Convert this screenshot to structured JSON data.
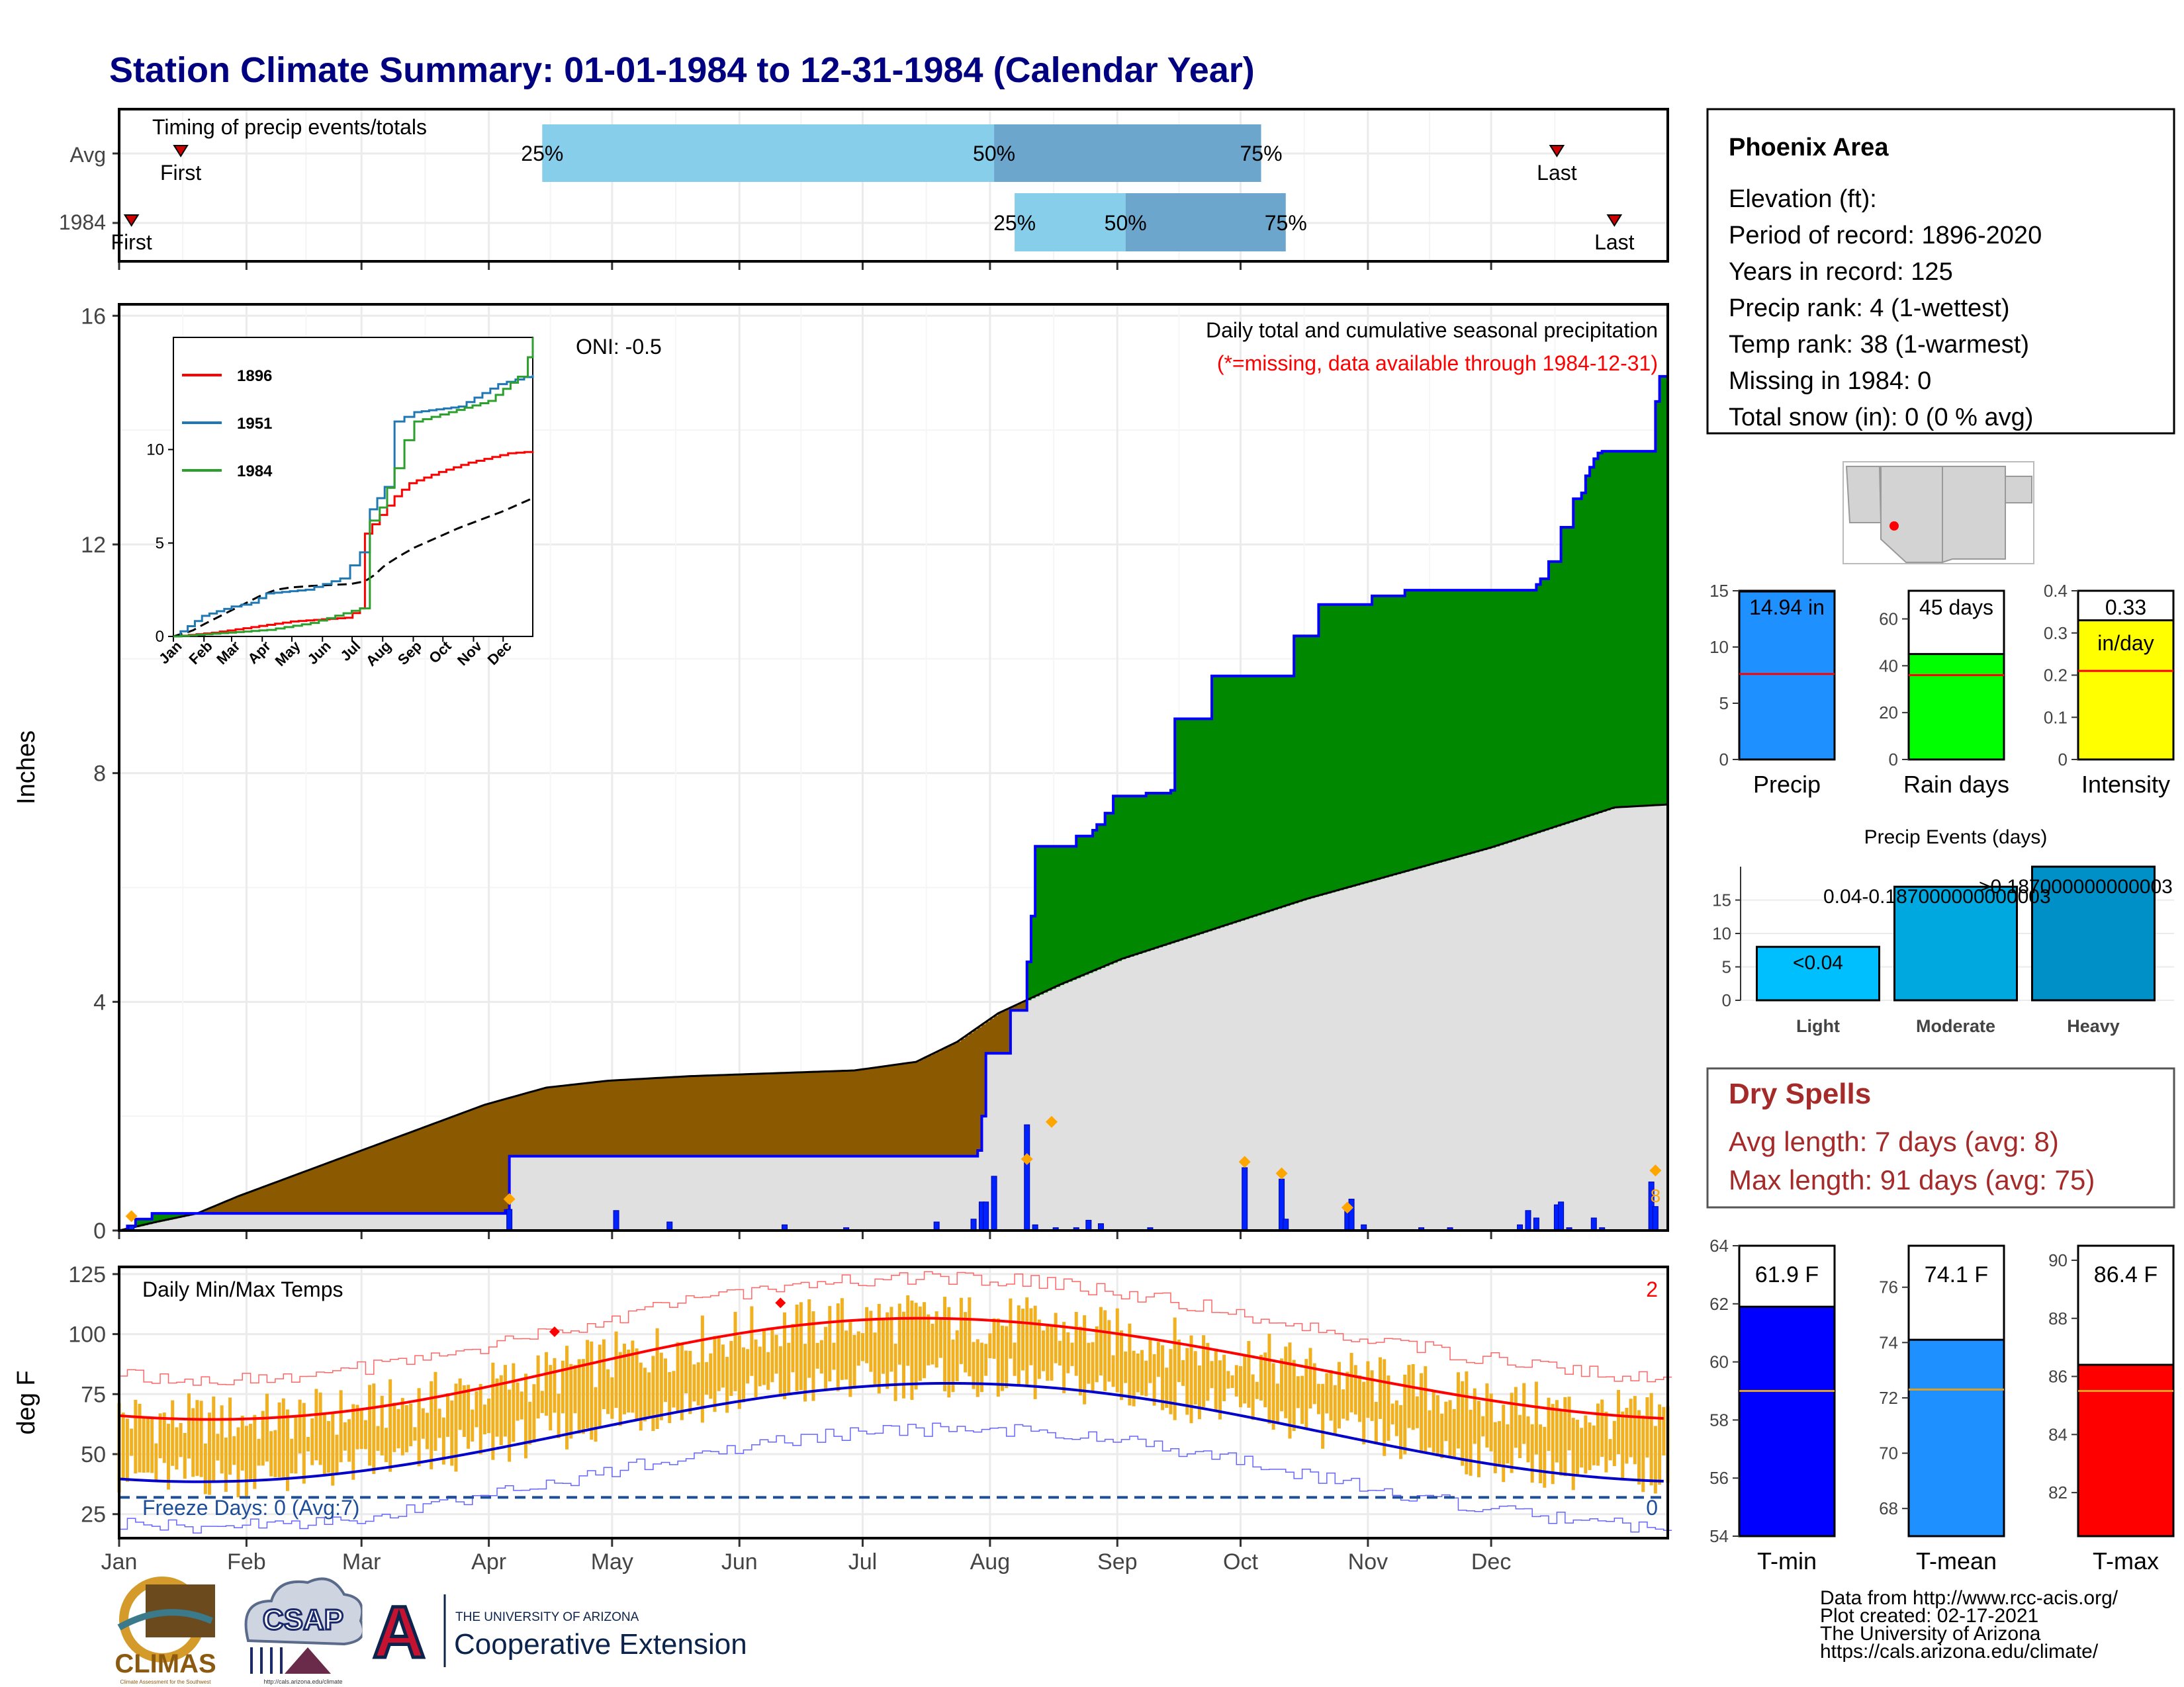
{
  "title": "Station Climate Summary: 01-01-1984 to 12-31-1984 (Calendar Year)",
  "colors": {
    "title": "#000080",
    "dry": "#8b5a00",
    "wet": "#008800",
    "avg_fill": "#e0e0e0",
    "cum_line": "#0000ff",
    "light_blue": "#87ceeb",
    "mid_blue": "#6ca6cd",
    "temp_bar": "#f0b020",
    "tmax_line": "#ff0000",
    "tmin_line": "#0000cc",
    "dry_spell": "#a52a2a",
    "marker": "#ffa500"
  },
  "timing": {
    "label": "Timing of precip events/totals",
    "rows": [
      {
        "row": "Avg",
        "first_doy": 16,
        "p25_doy": 104,
        "p50_doy": 214,
        "p75_doy": 279,
        "last_doy": 351
      },
      {
        "row": "1984",
        "first_doy": 4,
        "p25_doy": 219,
        "p50_doy": 246,
        "p75_doy": 285,
        "last_doy": 365
      }
    ],
    "first_label": "First",
    "last_label": "Last",
    "p25_label": "25%",
    "p50_label": "50%",
    "p75_label": "75%"
  },
  "months": [
    "Jan",
    "Feb",
    "Mar",
    "Apr",
    "May",
    "Jun",
    "Jul",
    "Aug",
    "Sep",
    "Oct",
    "Nov",
    "Dec"
  ],
  "precip": {
    "annotation_main": "Daily total and cumulative seasonal precipitation",
    "annotation_missing": "(*=missing, data available through 1984-12-31)",
    "oni": "ONI: -0.5",
    "ylabel": "Inches",
    "yticks": [
      0,
      4,
      8,
      12,
      16
    ],
    "ylim": [
      0,
      16.2
    ],
    "cumulative_1984": [
      [
        1,
        0
      ],
      [
        3,
        0.08
      ],
      [
        5,
        0.2
      ],
      [
        9,
        0.3
      ],
      [
        95,
        0.35
      ],
      [
        96,
        0.72
      ],
      [
        96,
        1.3
      ],
      [
        210,
        1.32
      ],
      [
        210,
        1.4
      ],
      [
        211,
        1.55
      ],
      [
        211,
        2.0
      ],
      [
        212,
        2.9
      ],
      [
        212,
        3.1
      ],
      [
        218,
        3.45
      ],
      [
        218,
        3.85
      ],
      [
        222,
        3.85
      ],
      [
        222,
        4.7
      ],
      [
        223,
        4.9
      ],
      [
        223,
        5.5
      ],
      [
        224,
        6.72
      ],
      [
        233,
        6.72
      ],
      [
        234,
        6.9
      ],
      [
        238,
        7.0
      ],
      [
        239,
        7.1
      ],
      [
        241,
        7.3
      ],
      [
        243,
        7.6
      ],
      [
        251,
        7.65
      ],
      [
        257,
        7.7
      ],
      [
        258,
        8.95
      ],
      [
        267,
        8.95
      ],
      [
        267,
        9.7
      ],
      [
        287,
        9.7
      ],
      [
        287,
        10.4
      ],
      [
        293,
        10.4
      ],
      [
        293,
        10.95
      ],
      [
        306,
        10.95
      ],
      [
        306,
        11.1
      ],
      [
        314,
        11.1
      ],
      [
        314,
        11.2
      ],
      [
        325,
        11.2
      ],
      [
        334,
        11.2
      ],
      [
        346,
        11.2
      ],
      [
        346,
        11.3
      ],
      [
        347,
        11.4
      ],
      [
        349,
        11.7
      ],
      [
        352,
        11.7
      ],
      [
        352,
        12.3
      ],
      [
        355,
        12.3
      ],
      [
        355,
        12.8
      ],
      [
        357,
        12.9
      ],
      [
        358,
        13.1
      ],
      [
        358,
        13.2
      ],
      [
        359,
        13.35
      ],
      [
        360,
        13.4
      ],
      [
        360,
        13.5
      ],
      [
        361,
        13.6
      ],
      [
        362,
        13.63
      ],
      [
        374,
        13.63
      ],
      [
        375,
        14.5
      ],
      [
        376,
        14.94
      ],
      [
        378,
        14.94
      ]
    ],
    "average_cumulative": [
      [
        1,
        0
      ],
      [
        10,
        0.15
      ],
      [
        20,
        0.3
      ],
      [
        30,
        0.6
      ],
      [
        45,
        1.0
      ],
      [
        60,
        1.4
      ],
      [
        75,
        1.8
      ],
      [
        90,
        2.2
      ],
      [
        105,
        2.5
      ],
      [
        120,
        2.62
      ],
      [
        140,
        2.7
      ],
      [
        160,
        2.75
      ],
      [
        180,
        2.8
      ],
      [
        195,
        2.95
      ],
      [
        205,
        3.3
      ],
      [
        215,
        3.8
      ],
      [
        230,
        4.3
      ],
      [
        245,
        4.75
      ],
      [
        260,
        5.1
      ],
      [
        275,
        5.45
      ],
      [
        290,
        5.8
      ],
      [
        305,
        6.1
      ],
      [
        320,
        6.4
      ],
      [
        335,
        6.7
      ],
      [
        350,
        7.05
      ],
      [
        365,
        7.4
      ]
    ],
    "daily_bars": [
      [
        4,
        0.08
      ],
      [
        96,
        0.37
      ],
      [
        122,
        0.35
      ],
      [
        135,
        0.15
      ],
      [
        163,
        0.1
      ],
      [
        178,
        0.05
      ],
      [
        200,
        0.15
      ],
      [
        209,
        0.2
      ],
      [
        211,
        0.5
      ],
      [
        212,
        0.5
      ],
      [
        214,
        0.95
      ],
      [
        222,
        1.85
      ],
      [
        224,
        0.1
      ],
      [
        229,
        0.05
      ],
      [
        234,
        0.05
      ],
      [
        237,
        0.18
      ],
      [
        240,
        0.12
      ],
      [
        252,
        0.05
      ],
      [
        275,
        1.1
      ],
      [
        284,
        0.9
      ],
      [
        285,
        0.2
      ],
      [
        300,
        0.45
      ],
      [
        301,
        0.55
      ],
      [
        304,
        0.1
      ],
      [
        318,
        0.05
      ],
      [
        325,
        0.05
      ],
      [
        342,
        0.1
      ],
      [
        344,
        0.35
      ],
      [
        346,
        0.22
      ],
      [
        351,
        0.45
      ],
      [
        352,
        0.5
      ],
      [
        354,
        0.05
      ],
      [
        360,
        0.22
      ],
      [
        362,
        0.05
      ],
      [
        374,
        0.85
      ],
      [
        375,
        0.42
      ]
    ],
    "peak_markers": [
      [
        4,
        0.25
      ],
      [
        96,
        0.55
      ],
      [
        222,
        1.25
      ],
      [
        228,
        1.9
      ],
      [
        275,
        1.2
      ],
      [
        284,
        1.0
      ],
      [
        300,
        0.4
      ],
      [
        375,
        1.05
      ]
    ],
    "peak_label": "8"
  },
  "inset": {
    "series": [
      {
        "name": "1896",
        "color": "#ff0000",
        "values": [
          [
            1,
            0
          ],
          [
            40,
            0.2
          ],
          [
            120,
            0.8
          ],
          [
            175,
            1.0
          ],
          [
            190,
            1.5
          ],
          [
            195,
            5.5
          ],
          [
            210,
            6.5
          ],
          [
            225,
            7.5
          ],
          [
            240,
            8.2
          ],
          [
            270,
            8.8
          ],
          [
            300,
            9.3
          ],
          [
            340,
            9.8
          ],
          [
            365,
            9.9
          ]
        ]
      },
      {
        "name": "1951",
        "color": "#1f77b4",
        "values": [
          [
            1,
            0
          ],
          [
            30,
            1.1
          ],
          [
            60,
            1.6
          ],
          [
            80,
            1.8
          ],
          [
            95,
            2.3
          ],
          [
            135,
            2.5
          ],
          [
            170,
            3.1
          ],
          [
            190,
            4.5
          ],
          [
            200,
            6.8
          ],
          [
            215,
            8.0
          ],
          [
            225,
            11.5
          ],
          [
            245,
            12.0
          ],
          [
            290,
            12.3
          ],
          [
            330,
            13.5
          ],
          [
            365,
            14.0
          ]
        ]
      },
      {
        "name": "1984",
        "color": "#2ca02c",
        "values": [
          [
            1,
            0
          ],
          [
            96,
            0.35
          ],
          [
            140,
            0.72
          ],
          [
            190,
            1.5
          ],
          [
            200,
            6.2
          ],
          [
            210,
            6.9
          ],
          [
            225,
            9.0
          ],
          [
            235,
            10.5
          ],
          [
            245,
            11.5
          ],
          [
            280,
            12.0
          ],
          [
            320,
            12.6
          ],
          [
            350,
            13.9
          ],
          [
            360,
            14.94
          ],
          [
            365,
            16.0
          ]
        ]
      }
    ],
    "avg_color": "#000000",
    "yticks": [
      0,
      5,
      10
    ],
    "ylim": [
      0,
      16
    ],
    "months": [
      "Jan",
      "Feb",
      "Mar",
      "Apr",
      "May",
      "Jun",
      "Jul",
      "Aug",
      "Sep",
      "Oct",
      "Nov",
      "Dec"
    ]
  },
  "temps": {
    "label": "Daily Min/Max Temps",
    "ylabel": "deg F",
    "yticks": [
      25,
      50,
      75,
      100,
      125
    ],
    "ylim": [
      15,
      128
    ],
    "freeze_label": "Freeze Days: 0 (Avg:7)",
    "freeze_line": 32,
    "count_top": "2",
    "count_bottom": "0",
    "record_markers": [
      [
        107,
        101
      ],
      [
        162,
        113
      ]
    ]
  },
  "info": {
    "name": "Phoenix Area",
    "lines": [
      "Elevation (ft):",
      "Period of record: 1896-2020",
      "Years in record: 125",
      "Precip rank: 4 (1-wettest)",
      "Temp rank: 38 (1-warmest)",
      "Missing in 1984: 0",
      "Total snow (in): 0 (0 % avg)"
    ]
  },
  "summary_bars": [
    {
      "label": "Precip",
      "value": 14.94,
      "value_text": "14.94 in",
      "avg": 7.6,
      "max": 15,
      "yticks": [
        0,
        5,
        10,
        15
      ],
      "color": "#1e90ff"
    },
    {
      "label": "Rain days",
      "value": 45,
      "value_text": "45 days",
      "avg": 36,
      "max": 72,
      "yticks": [
        0,
        20,
        40,
        60
      ],
      "color": "#00ff00"
    },
    {
      "label": "Intensity",
      "value": 0.33,
      "value_text": "0.33",
      "value_text2": "in/day",
      "avg": 0.21,
      "max": 0.4,
      "yticks": [
        0.0,
        0.1,
        0.2,
        0.3,
        0.4
      ],
      "color": "#ffff00"
    }
  ],
  "events": {
    "title": "Precip Events (days)",
    "categories": [
      "Light",
      "Moderate",
      "Heavy"
    ],
    "values": [
      8,
      17,
      20
    ],
    "labels": [
      "<0.04",
      "0.04-0.187000000000003",
      ">0.187000000000003"
    ],
    "colors": [
      "#00bfff",
      "#00a8e0",
      "#0090c8"
    ],
    "yticks": [
      0,
      5,
      10,
      15
    ],
    "ylim": [
      0,
      20
    ]
  },
  "dry_spells": {
    "title": "Dry Spells",
    "avg": "Avg length: 7 days (avg: 8)",
    "max": "Max length: 91 days (avg: 75)"
  },
  "temp_bars": [
    {
      "label": "T-min",
      "value": 61.9,
      "value_text": "61.9 F",
      "avg": 59.0,
      "ylim": [
        54,
        64
      ],
      "yticks": [
        54,
        56,
        58,
        60,
        62,
        64
      ],
      "color": "#0000ff"
    },
    {
      "label": "T-mean",
      "value": 74.1,
      "value_text": "74.1 F",
      "avg": 72.3,
      "ylim": [
        67,
        77.5
      ],
      "yticks": [
        68,
        70,
        72,
        74,
        76
      ],
      "color": "#1e90ff"
    },
    {
      "label": "T-max",
      "value": 86.4,
      "value_text": "86.4 F",
      "avg": 85.5,
      "ylim": [
        80.5,
        90.5
      ],
      "yticks": [
        82,
        84,
        86,
        88,
        90
      ],
      "color": "#ff0000"
    }
  ],
  "credits": [
    "Data from http://www.rcc-acis.org/",
    "Plot created: 02-17-2021",
    "The University of Arizona",
    "https://cals.arizona.edu/climate/"
  ],
  "logos": {
    "climas": "CLIMAS",
    "climas_sub": "Climate Assessment for the Southwest",
    "csap": "CSAP",
    "csap_url": "http://cals.arizona.edu/climate",
    "ua_letter": "A",
    "ua_top": "THE UNIVERSITY OF ARIZONA",
    "ua_main": "Cooperative Extension"
  }
}
